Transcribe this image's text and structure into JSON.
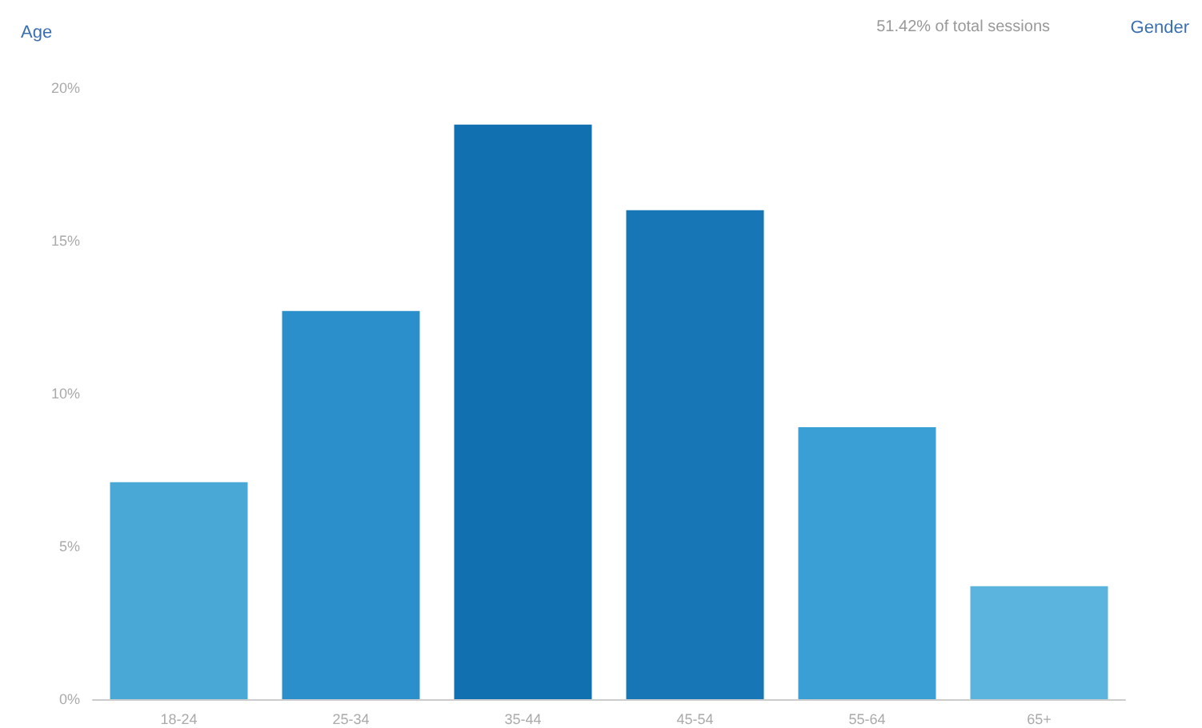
{
  "chart_data": {
    "type": "bar",
    "title": "Age",
    "annotations": [
      "51.42% of total sessions",
      "Gender"
    ],
    "categories": [
      "18-24",
      "25-34",
      "35-44",
      "45-54",
      "55-64",
      "65+"
    ],
    "values": [
      7.1,
      12.7,
      18.8,
      16.0,
      8.9,
      3.7
    ],
    "colors": [
      "#4aa8d6",
      "#2b8fcc",
      "#1170b0",
      "#1676b6",
      "#3a9fd4",
      "#5ab4de"
    ],
    "ylim": [
      0,
      20
    ],
    "yticks": [
      {
        "value": 0,
        "label": "0%"
      },
      {
        "value": 5,
        "label": "5%"
      },
      {
        "value": 10,
        "label": "10%"
      },
      {
        "value": 15,
        "label": "15%"
      },
      {
        "value": 20,
        "label": "20%"
      }
    ],
    "grid": false
  }
}
